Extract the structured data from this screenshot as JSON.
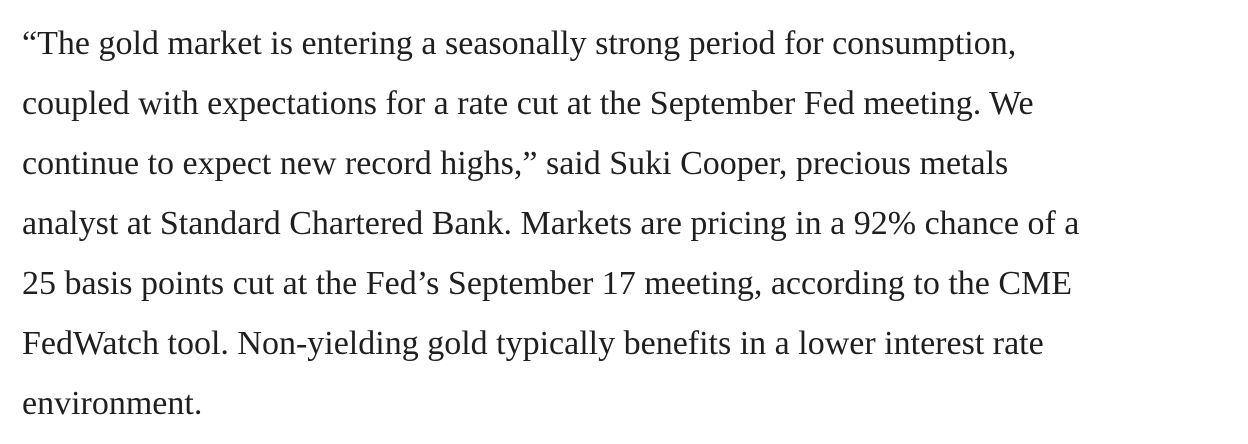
{
  "article": {
    "paragraph_lines": [
      "“The gold market is entering a seasonally strong period for consumption,",
      "coupled with expectations for a rate cut at the September Fed meeting. We",
      "continue to expect new record highs,” said Suki Cooper, precious metals",
      "analyst at Standard Chartered Bank. Markets are pricing in a 92% chance of a",
      "25 basis points cut at the Fed’s September 17 meeting, according to the CME",
      "FedWatch tool. Non-yielding gold typically benefits in a lower interest rate",
      "environment."
    ]
  }
}
